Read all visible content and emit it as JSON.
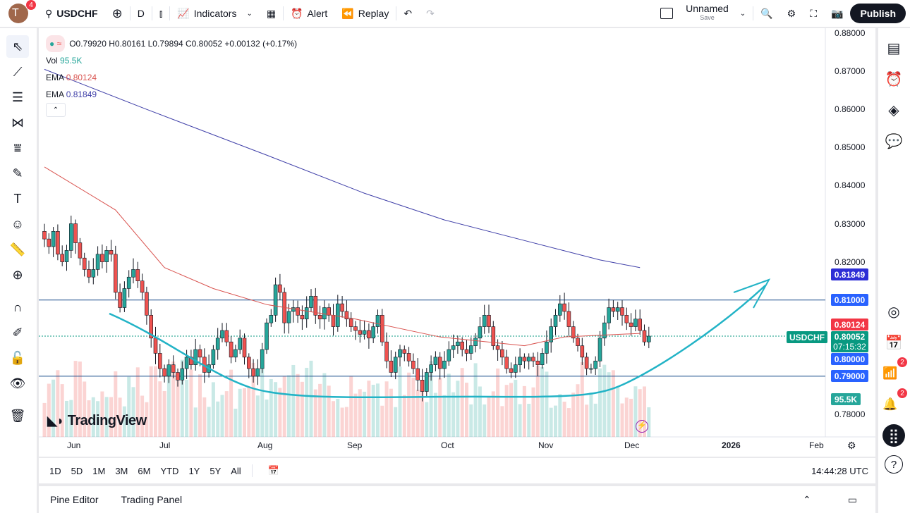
{
  "topbar": {
    "avatar_letter": "T",
    "avatar_badge": "4",
    "symbol": "USDCHF",
    "interval": "D",
    "indicators": "Indicators",
    "alert": "Alert",
    "replay": "Replay",
    "layout_name": "Unnamed",
    "layout_sub": "Save",
    "publish": "Publish"
  },
  "legend": {
    "ohlc": "O0.79920 H0.80161 L0.79894 C0.80052 +0.00132 (+0.17%)",
    "vol_label": "Vol",
    "vol_value": "95.5K",
    "ema1_label": "EMA",
    "ema1_value": "0.80124",
    "ema2_label": "EMA",
    "ema2_value": "0.81849"
  },
  "colors": {
    "up": "#26a69a",
    "down": "#ef5350",
    "ema50": "#d9534f",
    "ema200": "#3f3fa8",
    "drawing": "#22b3c6",
    "hline": "#1e4f8c"
  },
  "price_axis": {
    "ticks": [
      "0.88000",
      "0.87000",
      "0.86000",
      "0.85000",
      "0.84000",
      "0.83000",
      "0.82000",
      "0.78000"
    ],
    "labels": {
      "ema200": "0.81849",
      "line_high": "0.81000",
      "ema50": "0.80124",
      "symbol": "USDCHF",
      "price": "0.80052",
      "countdown": "07:15:32",
      "round": "0.80000",
      "line_low": "0.79000",
      "volume": "95.5K"
    }
  },
  "time_axis": [
    "Jun",
    "Jul",
    "Aug",
    "Sep",
    "Oct",
    "Nov",
    "Dec",
    "2026",
    "Feb"
  ],
  "watermark": "TradingView",
  "range_bar": {
    "ranges": [
      "1D",
      "5D",
      "1M",
      "3M",
      "6M",
      "YTD",
      "1Y",
      "5Y",
      "All"
    ],
    "clock": "14:44:28 UTC"
  },
  "bottom_panel": {
    "pine": "Pine Editor",
    "trading": "Trading Panel"
  },
  "right_sidebar": {
    "news_badge": "2",
    "alerts_badge": "2"
  },
  "chart_data": {
    "type": "candlestick",
    "symbol": "USDCHF",
    "interval": "D",
    "ylim": [
      0.775,
      0.885
    ],
    "closes": [
      0.826,
      0.824,
      0.828,
      0.822,
      0.82,
      0.823,
      0.83,
      0.825,
      0.821,
      0.818,
      0.816,
      0.818,
      0.822,
      0.82,
      0.823,
      0.822,
      0.812,
      0.808,
      0.813,
      0.816,
      0.818,
      0.815,
      0.812,
      0.806,
      0.8,
      0.796,
      0.792,
      0.79,
      0.793,
      0.791,
      0.789,
      0.792,
      0.795,
      0.793,
      0.797,
      0.795,
      0.791,
      0.793,
      0.797,
      0.8,
      0.802,
      0.799,
      0.795,
      0.797,
      0.8,
      0.795,
      0.792,
      0.79,
      0.792,
      0.797,
      0.804,
      0.806,
      0.814,
      0.812,
      0.804,
      0.807,
      0.808,
      0.806,
      0.805,
      0.808,
      0.811,
      0.806,
      0.805,
      0.808,
      0.806,
      0.803,
      0.809,
      0.807,
      0.805,
      0.803,
      0.802,
      0.801,
      0.802,
      0.8,
      0.803,
      0.806,
      0.799,
      0.794,
      0.791,
      0.795,
      0.797,
      0.796,
      0.794,
      0.792,
      0.789,
      0.786,
      0.791,
      0.793,
      0.795,
      0.792,
      0.794,
      0.797,
      0.798,
      0.799,
      0.797,
      0.796,
      0.798,
      0.8,
      0.803,
      0.806,
      0.803,
      0.798,
      0.797,
      0.795,
      0.792,
      0.791,
      0.793,
      0.795,
      0.794,
      0.795,
      0.794,
      0.793,
      0.796,
      0.799,
      0.803,
      0.806,
      0.809,
      0.807,
      0.803,
      0.8,
      0.798,
      0.795,
      0.792,
      0.792,
      0.794,
      0.8,
      0.804,
      0.808,
      0.807,
      0.808,
      0.806,
      0.804,
      0.803,
      0.805,
      0.802,
      0.799,
      0.80052
    ],
    "ema_slow": [
      [
        0,
        0.8705
      ],
      [
        23,
        0.86
      ],
      [
        50,
        0.848
      ],
      [
        72,
        0.838
      ],
      [
        90,
        0.831
      ],
      [
        110,
        0.825
      ],
      [
        125,
        0.8205
      ],
      [
        134,
        0.81849
      ]
    ],
    "ema_fast": [
      [
        0,
        0.8449
      ],
      [
        16,
        0.8336
      ],
      [
        27,
        0.8185
      ],
      [
        38,
        0.813
      ],
      [
        50,
        0.8088
      ],
      [
        70,
        0.805
      ],
      [
        89,
        0.8003
      ],
      [
        108,
        0.798
      ],
      [
        117,
        0.8003
      ],
      [
        134,
        0.80124
      ]
    ],
    "horizontal_lines": [
      0.81,
      0.79
    ]
  }
}
